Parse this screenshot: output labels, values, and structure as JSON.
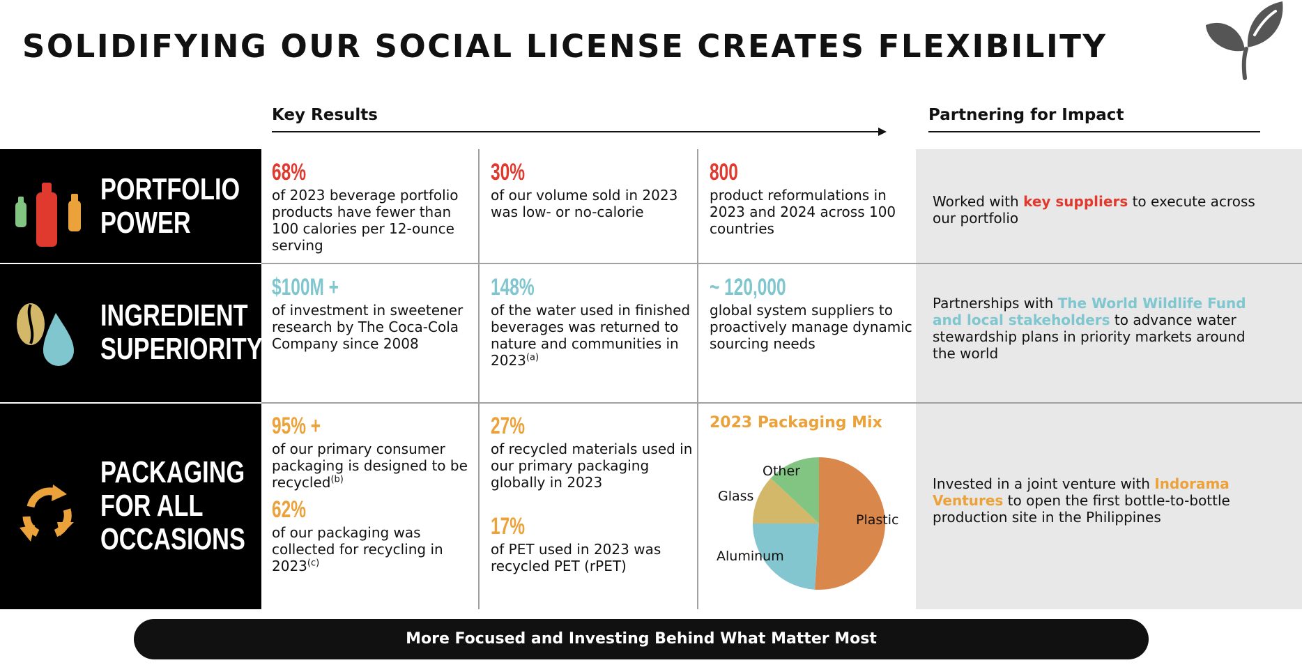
{
  "title": "SOLIDIFYING OUR SOCIAL LICENSE CREATES FLEXIBILITY",
  "headers": {
    "key_results": "Key Results",
    "partnering": "Partnering for Impact"
  },
  "colors": {
    "red": "#e03a2f",
    "teal": "#7fc6cf",
    "orange": "#eba23a",
    "partner_bg": "#e8e8e8",
    "dark": "#111111"
  },
  "rows": {
    "portfolio": {
      "label_line1": "PORTFOLIO",
      "label_line2": "POWER",
      "icon": "bottles-icon",
      "c1_big": "68%",
      "c1_desc": "of 2023 beverage portfolio products have fewer than 100 calories per 12-ounce serving",
      "c2_big": "30%",
      "c2_desc": "of our volume sold in 2023 was low- or no-calorie",
      "c3_big": "800",
      "c3_desc": "product reformulations in 2023 and 2024 across 100 countries",
      "partner_pre": "Worked with ",
      "partner_hl": "key suppliers",
      "partner_post": " to execute across our portfolio"
    },
    "ingredient": {
      "label_line1": "INGREDIENT",
      "label_line2": "SUPERIORITY",
      "icon": "bean-and-water-drop-icon",
      "c1_big": "$100M +",
      "c1_desc": "of investment in sweetener research by The Coca-Cola Company since 2008",
      "c2_big": "148%",
      "c2_desc": "of the water used in finished beverages was returned to nature and communities in 2023",
      "c2_sup": "(a)",
      "c3_big": "~ 120,000",
      "c3_desc": "global system suppliers to proactively manage dynamic sourcing needs",
      "partner_pre": "Partnerships with ",
      "partner_hl": "The World Wildlife Fund and local stakeholders",
      "partner_post": " to advance water stewardship plans in priority markets around the world"
    },
    "packaging": {
      "label_line1": "PACKAGING",
      "label_line2": "FOR ALL",
      "label_line3": "OCCASIONS",
      "icon": "recycle-icon",
      "c1_big": "95% +",
      "c1_desc": "of our primary consumer packaging is designed to be recycled",
      "c1_sup": "(b)",
      "c1b_big": "62%",
      "c1b_desc": "of our packaging was collected for recycling in 2023",
      "c1b_sup": "(c)",
      "c2_big": "27%",
      "c2_desc": "of recycled materials used in our primary packaging globally in 2023",
      "c2b_big": "17%",
      "c2b_desc": "of PET used in 2023 was recycled PET (rPET)",
      "partner_pre": "Invested in a joint venture with ",
      "partner_hl": "Indorama Ventures",
      "partner_post": " to open the first bottle-to-bottle production site in the Philippines"
    }
  },
  "chart_data": {
    "type": "pie",
    "title": "2023 Packaging Mix",
    "categories": [
      "Plastic",
      "Aluminum",
      "Glass",
      "Other"
    ],
    "values": [
      51,
      24,
      12,
      13
    ],
    "colors": [
      "#d9874a",
      "#84c6d0",
      "#d4b86a",
      "#82c582"
    ]
  },
  "banner": "More Focused and Investing Behind What Matter Most"
}
